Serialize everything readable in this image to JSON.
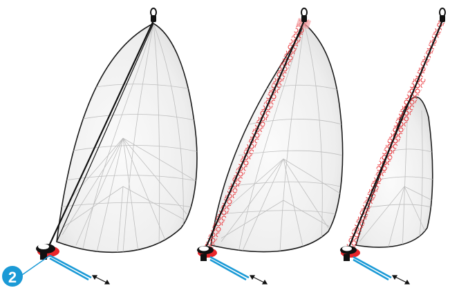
{
  "diagram": {
    "step_marker": "2",
    "accent_color": "#1b9ad6",
    "furl_color": "#e8262b",
    "sail_fill": "#f1f1f1",
    "seam_color": "#b9b9b9",
    "line_color": "#111111",
    "arrow_icon": "double-arrow-icon",
    "panels": [
      {
        "state": "set"
      },
      {
        "state": "furling"
      },
      {
        "state": "mostly-furled"
      }
    ]
  }
}
